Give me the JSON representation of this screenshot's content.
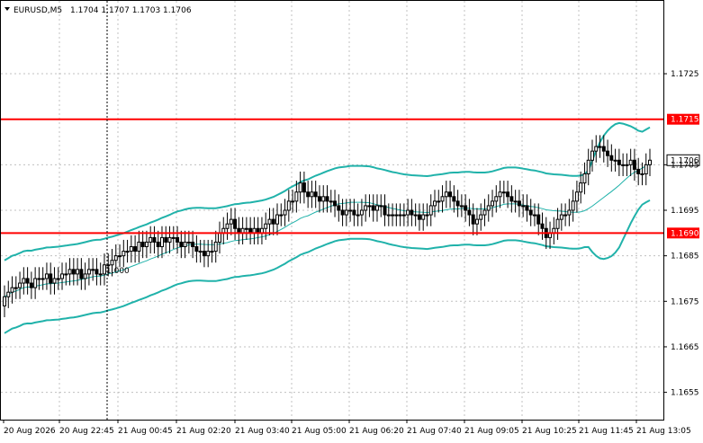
{
  "header": {
    "symbol_timeframe": "EURUSD,M5",
    "quote": "1.1704 1.1707 1.1703 1.1706"
  },
  "colors": {
    "background": "#ffffff",
    "candle": "#000000",
    "bollinger": "#20b2aa",
    "level_line": "#ff0000",
    "price_label_bg": "#ffffff",
    "level_label_bg": "#ff0000",
    "grid": "#c0c0c0"
  },
  "chart_data": {
    "type": "candlestick",
    "title": "",
    "y_ticks": [
      "1.1725",
      "1.1715",
      "1.1706",
      "1.1705",
      "1.1695",
      "1.1690",
      "1.1685",
      "1.1675",
      "1.1665",
      "1.1655"
    ],
    "y_range": [
      1.1649,
      1.1741
    ],
    "x_ticks": [
      "20 Aug 2026",
      "20 Aug 22:45",
      "21 Aug 00:45",
      "21 Aug 02:20",
      "21 Aug 03:40",
      "21 Aug 05:00",
      "21 Aug 06:20",
      "21 Aug 07:40",
      "21 Aug 09:05",
      "21 Aug 10:25",
      "21 Aug 11:45",
      "21 Aug 13:05"
    ],
    "current_price": "1.1706",
    "levels": [
      {
        "label": "1.1715",
        "value": 1.1715
      },
      {
        "label": "1.1690",
        "value": 1.169
      }
    ],
    "annotation": "1.000",
    "grid": true,
    "series_close": [
      1.1676,
      1.1677,
      1.1678,
      1.1678,
      1.1679,
      1.168,
      1.1679,
      1.1678,
      1.168,
      1.168,
      1.168,
      1.1681,
      1.1679,
      1.168,
      1.168,
      1.1681,
      1.1681,
      1.1682,
      1.1681,
      1.1682,
      1.168,
      1.1681,
      1.1682,
      1.1682,
      1.1681,
      1.1681,
      1.1683,
      1.1683,
      1.1684,
      1.1685,
      1.1685,
      1.1686,
      1.1686,
      1.1687,
      1.1686,
      1.1688,
      1.1687,
      1.1688,
      1.1689,
      1.1688,
      1.1687,
      1.1689,
      1.1688,
      1.1689,
      1.1689,
      1.1688,
      1.1687,
      1.1688,
      1.1688,
      1.1687,
      1.1686,
      1.1686,
      1.1685,
      1.1686,
      1.1686,
      1.1688,
      1.169,
      1.1691,
      1.1692,
      1.1693,
      1.1691,
      1.169,
      1.1691,
      1.1691,
      1.169,
      1.1691,
      1.169,
      1.1691,
      1.1692,
      1.1693,
      1.1692,
      1.1694,
      1.1694,
      1.1695,
      1.1697,
      1.1697,
      1.1699,
      1.1701,
      1.1699,
      1.1698,
      1.1699,
      1.1698,
      1.1697,
      1.1698,
      1.1697,
      1.1697,
      1.1696,
      1.1695,
      1.1694,
      1.1695,
      1.1695,
      1.1694,
      1.1694,
      1.1695,
      1.1696,
      1.1696,
      1.1695,
      1.1696,
      1.1696,
      1.1694,
      1.1694,
      1.1694,
      1.1694,
      1.1694,
      1.1694,
      1.1695,
      1.1694,
      1.1694,
      1.1693,
      1.1694,
      1.1694,
      1.1696,
      1.1697,
      1.1697,
      1.1698,
      1.1699,
      1.1698,
      1.1697,
      1.1696,
      1.1696,
      1.1695,
      1.1694,
      1.1692,
      1.1693,
      1.1694,
      1.1695,
      1.1696,
      1.1697,
      1.1698,
      1.1699,
      1.1699,
      1.1698,
      1.1697,
      1.1697,
      1.1696,
      1.1696,
      1.1695,
      1.1694,
      1.1694,
      1.1692,
      1.1691,
      1.1689,
      1.169,
      1.1691,
      1.1693,
      1.1694,
      1.1694,
      1.1695,
      1.1697,
      1.1699,
      1.1701,
      1.1703,
      1.1706,
      1.1708,
      1.1709,
      1.1709,
      1.1708,
      1.1707,
      1.1706,
      1.1706,
      1.1705,
      1.1705,
      1.1705,
      1.1706,
      1.1704,
      1.1703,
      1.1703,
      1.1705,
      1.1706
    ]
  }
}
